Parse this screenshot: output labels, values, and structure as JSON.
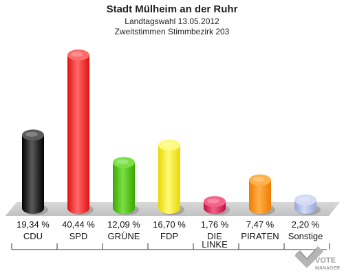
{
  "chart_data": {
    "type": "bar",
    "title": "Stadt Mülheim an der Ruhr",
    "subtitle_1": "Landtagswahl 13.05.2012",
    "subtitle_2": "Zweitstimmen Stimmbezirk 203",
    "unit": "%",
    "ylim": [
      0,
      42
    ],
    "grid": false,
    "legend": "none",
    "bars": [
      {
        "category": "CDU",
        "category_line2": "",
        "value": 19.34,
        "value_label": "19,34 %",
        "color": "#000000",
        "light": "#5a5a5a"
      },
      {
        "category": "SPD",
        "category_line2": "",
        "value": 40.44,
        "value_label": "40,44 %",
        "color": "#e01010",
        "light": "#ff6a6a"
      },
      {
        "category": "GRÜNE",
        "category_line2": "",
        "value": 12.09,
        "value_label": "12,09 %",
        "color": "#3aa800",
        "light": "#7be046"
      },
      {
        "category": "FDP",
        "category_line2": "",
        "value": 16.7,
        "value_label": "16,70 %",
        "color": "#e8d800",
        "light": "#fffa7a"
      },
      {
        "category": "DIE",
        "category_line2": "LINKE",
        "value": 1.76,
        "value_label": "1,76 %",
        "color": "#c0103c",
        "light": "#f2628a"
      },
      {
        "category": "PIRATEN",
        "category_line2": "",
        "value": 7.47,
        "value_label": "7,47 %",
        "color": "#ee7a00",
        "light": "#ffb04a"
      },
      {
        "category": "Sonstige",
        "category_line2": "",
        "value": 2.2,
        "value_label": "2,20 %",
        "color": "#98a6d8",
        "light": "#d2daf6"
      }
    ]
  },
  "watermark": {
    "line1": "VOTE",
    "line2": "MANAGER"
  }
}
